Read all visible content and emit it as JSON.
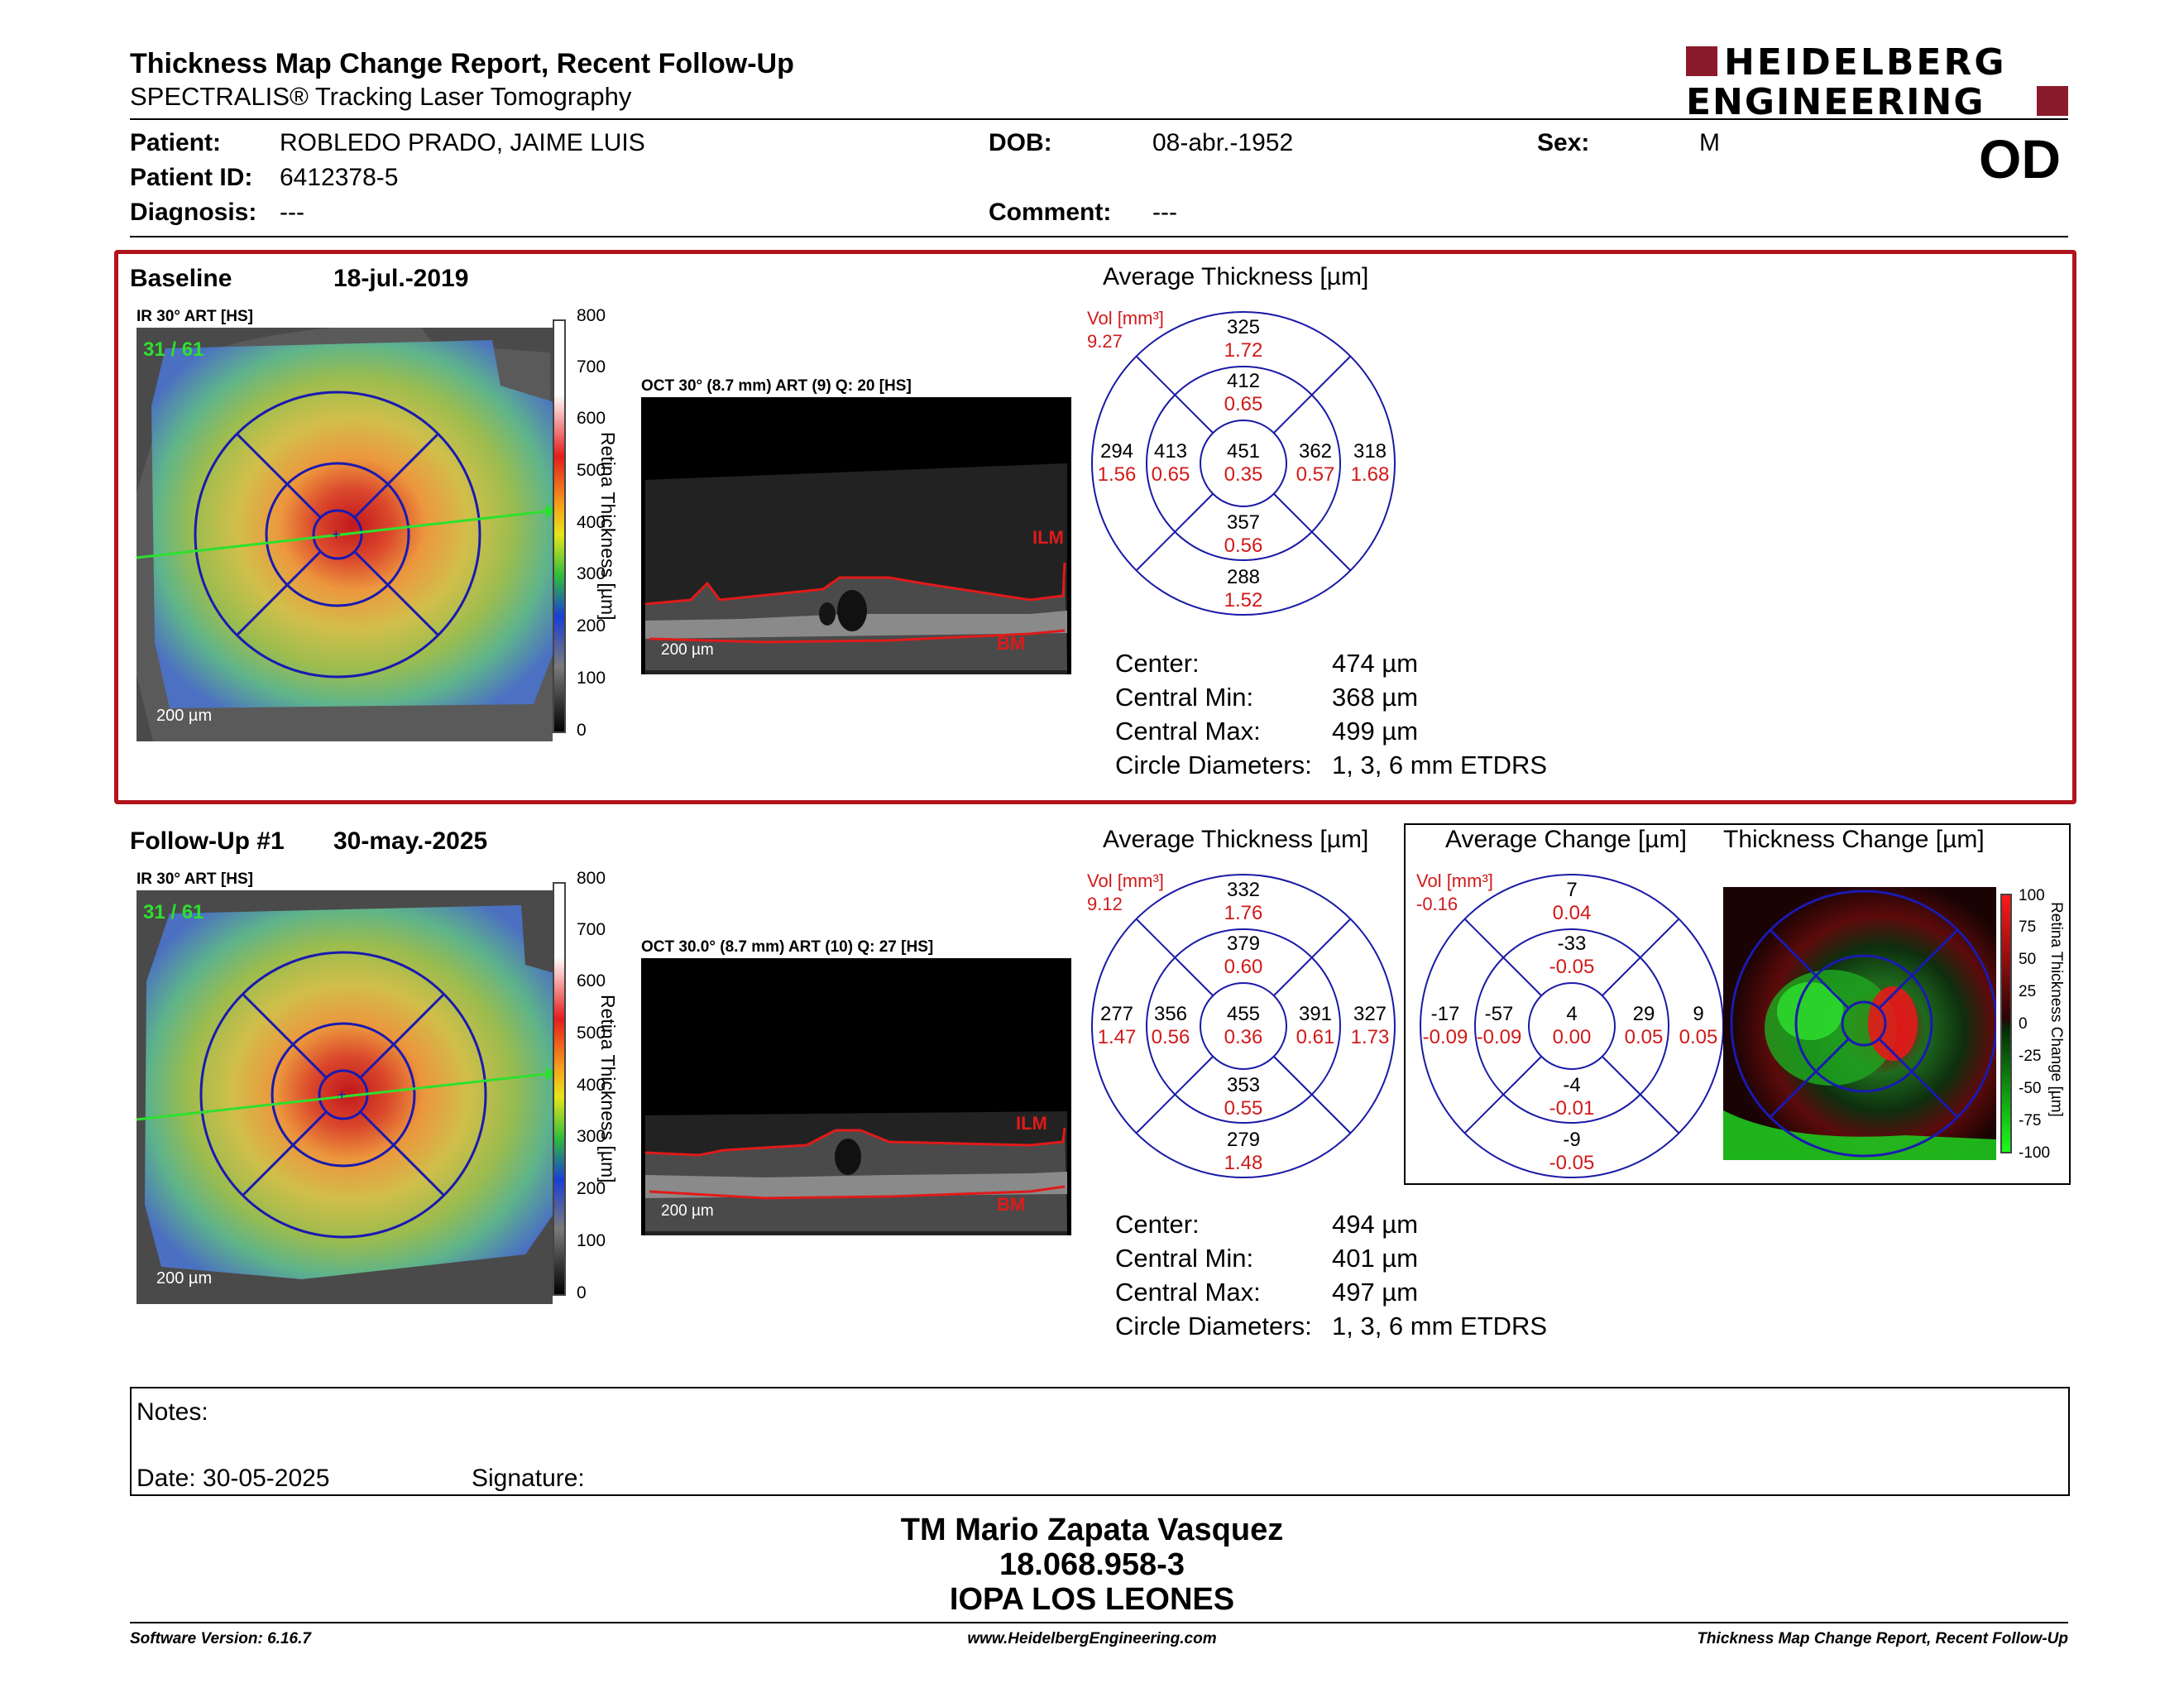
{
  "header": {
    "title": "Thickness Map Change Report, Recent Follow-Up",
    "subtitle": "SPECTRALIS® Tracking Laser Tomography",
    "logo_line1": "HEIDELBERG",
    "logo_line2": "ENGINEERING",
    "eye": "OD"
  },
  "patient": {
    "name_label": "Patient:",
    "name": "ROBLEDO PRADO, JAIME LUIS",
    "dob_label": "DOB:",
    "dob": "08-abr.-1952",
    "sex_label": "Sex:",
    "sex": "M",
    "id_label": "Patient ID:",
    "id": "6412378-5",
    "diagnosis_label": "Diagnosis:",
    "diagnosis": "---",
    "comment_label": "Comment:",
    "comment": "---"
  },
  "baseline": {
    "label": "Baseline",
    "date": "18-jul.-2019",
    "ir_label": "IR 30° ART [HS]",
    "frames": "31 / 61",
    "oct_label": "OCT 30° (8.7 mm) ART (9) Q: 20 [HS]",
    "scale_bar": "200 µm",
    "ilm": "ILM",
    "bm": "BM",
    "scale_title": "Retina Thickness [µm]",
    "scale_ticks": [
      "800",
      "700",
      "600",
      "500",
      "400",
      "300",
      "200",
      "100",
      "0"
    ],
    "avg_title": "Average Thickness [µm]",
    "vol_label": "Vol [mm³]",
    "vol": "9.27",
    "grid": {
      "center": [
        "451",
        "0.35"
      ],
      "inner_top": [
        "412",
        "0.65"
      ],
      "inner_bottom": [
        "357",
        "0.56"
      ],
      "inner_left": [
        "413",
        "0.65"
      ],
      "inner_right": [
        "362",
        "0.57"
      ],
      "outer_top": [
        "325",
        "1.72"
      ],
      "outer_bottom": [
        "288",
        "1.52"
      ],
      "outer_left": [
        "294",
        "1.56"
      ],
      "outer_right": [
        "318",
        "1.68"
      ]
    },
    "stats": [
      {
        "label": "Center:",
        "value": "474 µm"
      },
      {
        "label": "Central Min:",
        "value": "368 µm"
      },
      {
        "label": "Central Max:",
        "value": "499 µm"
      },
      {
        "label": "Circle Diameters:",
        "value": "1, 3, 6 mm ETDRS"
      }
    ]
  },
  "followup": {
    "label": "Follow-Up #1",
    "date": "30-may.-2025",
    "ir_label": "IR 30° ART [HS]",
    "frames": "31 / 61",
    "oct_label": "OCT 30.0° (8.7 mm) ART (10) Q: 27 [HS]",
    "scale_bar": "200 µm",
    "ilm": "ILM",
    "bm": "BM",
    "scale_title": "Retina Thickness [µm]",
    "scale_ticks": [
      "800",
      "700",
      "600",
      "500",
      "400",
      "300",
      "200",
      "100",
      "0"
    ],
    "avg_title": "Average Thickness [µm]",
    "vol_label": "Vol [mm³]",
    "vol": "9.12",
    "grid": {
      "center": [
        "455",
        "0.36"
      ],
      "inner_top": [
        "379",
        "0.60"
      ],
      "inner_bottom": [
        "353",
        "0.55"
      ],
      "inner_left": [
        "356",
        "0.56"
      ],
      "inner_right": [
        "391",
        "0.61"
      ],
      "outer_top": [
        "332",
        "1.76"
      ],
      "outer_bottom": [
        "279",
        "1.48"
      ],
      "outer_left": [
        "277",
        "1.47"
      ],
      "outer_right": [
        "327",
        "1.73"
      ]
    },
    "change_title": "Average Change [µm]",
    "change_vol_label": "Vol [mm³]",
    "change_vol": "-0.16",
    "change_grid": {
      "center": [
        "4",
        "0.00"
      ],
      "inner_top": [
        "-33",
        "-0.05"
      ],
      "inner_bottom": [
        "-4",
        "-0.01"
      ],
      "inner_left": [
        "-57",
        "-0.09"
      ],
      "inner_right": [
        "29",
        "0.05"
      ],
      "outer_top": [
        "7",
        "0.04"
      ],
      "outer_bottom": [
        "-9",
        "-0.05"
      ],
      "outer_left": [
        "-17",
        "-0.09"
      ],
      "outer_right": [
        "9",
        "0.05"
      ]
    },
    "thickness_change_title": "Thickness Change [µm]",
    "change_scale_title": "Retina Thickness Change [µm]",
    "change_scale_ticks": [
      "100",
      "75",
      "50",
      "25",
      "0",
      "-25",
      "-50",
      "-75",
      "-100"
    ],
    "stats": [
      {
        "label": "Center:",
        "value": "494 µm"
      },
      {
        "label": "Central Min:",
        "value": "401 µm"
      },
      {
        "label": "Central Max:",
        "value": "497 µm"
      },
      {
        "label": "Circle Diameters:",
        "value": "1, 3, 6 mm ETDRS"
      }
    ]
  },
  "notes": {
    "notes_label": "Notes:",
    "date_label": "Date: 30-05-2025",
    "signature_label": "Signature:"
  },
  "signature_block": {
    "name": "TM Mario Zapata Vasquez",
    "rut": "18.068.958-3",
    "institution": "IOPA LOS LEONES"
  },
  "footer": {
    "software": "Software Version: 6.16.7",
    "url": "www.HeidelbergEngineering.com",
    "report": "Thickness Map Change Report, Recent Follow-Up"
  },
  "colors": {
    "accent_red": "#b0141c",
    "logo_red": "#8b1a2b",
    "grid_blue": "#1a1aa6",
    "value_red": "#d11a1a"
  }
}
